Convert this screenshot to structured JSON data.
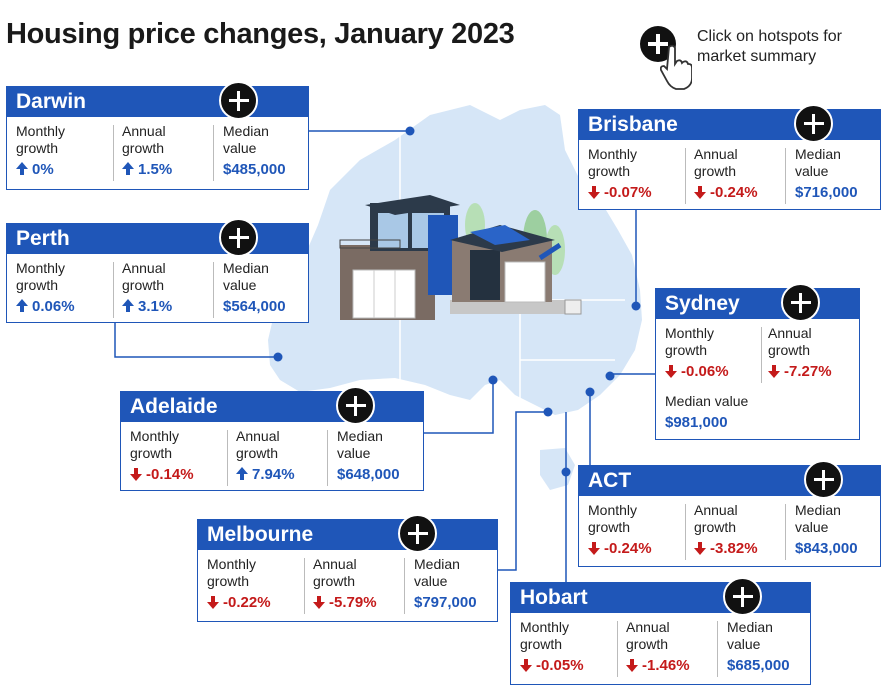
{
  "title": "Housing price changes, January 2023",
  "hint": {
    "text": "Click on hotspots for\nmarket summary",
    "icon": "hand-pointer-icon"
  },
  "labels": {
    "monthly": "Monthly\ngrowth",
    "annual": "Annual\ngrowth",
    "median": "Median\nvalue",
    "median_inline": "Median value"
  },
  "colors": {
    "brand_blue": "#1f56b8",
    "negative_red": "#c41a1a",
    "map_blue": "#d6e6f7"
  },
  "cities": [
    {
      "name": "Darwin",
      "monthly": "0%",
      "monthly_dir": "up",
      "annual": "1.5%",
      "annual_dir": "up",
      "median": "$485,000"
    },
    {
      "name": "Perth",
      "monthly": "0.06%",
      "monthly_dir": "up",
      "annual": "3.1%",
      "annual_dir": "up",
      "median": "$564,000"
    },
    {
      "name": "Adelaide",
      "monthly": "-0.14%",
      "monthly_dir": "down",
      "annual": "7.94%",
      "annual_dir": "up",
      "median": "$648,000"
    },
    {
      "name": "Melbourne",
      "monthly": "-0.22%",
      "monthly_dir": "down",
      "annual": "-5.79%",
      "annual_dir": "down",
      "median": "$797,000"
    },
    {
      "name": "Brisbane",
      "monthly": "-0.07%",
      "monthly_dir": "down",
      "annual": "-0.24%",
      "annual_dir": "down",
      "median": "$716,000"
    },
    {
      "name": "Sydney",
      "monthly": "-0.06%",
      "monthly_dir": "down",
      "annual": "-7.27%",
      "annual_dir": "down",
      "median": "$981,000"
    },
    {
      "name": "ACT",
      "monthly": "-0.24%",
      "monthly_dir": "down",
      "annual": "-3.82%",
      "annual_dir": "down",
      "median": "$843,000"
    },
    {
      "name": "Hobart",
      "monthly": "-0.05%",
      "monthly_dir": "down",
      "annual": "-1.46%",
      "annual_dir": "down",
      "median": "$685,000"
    }
  ]
}
